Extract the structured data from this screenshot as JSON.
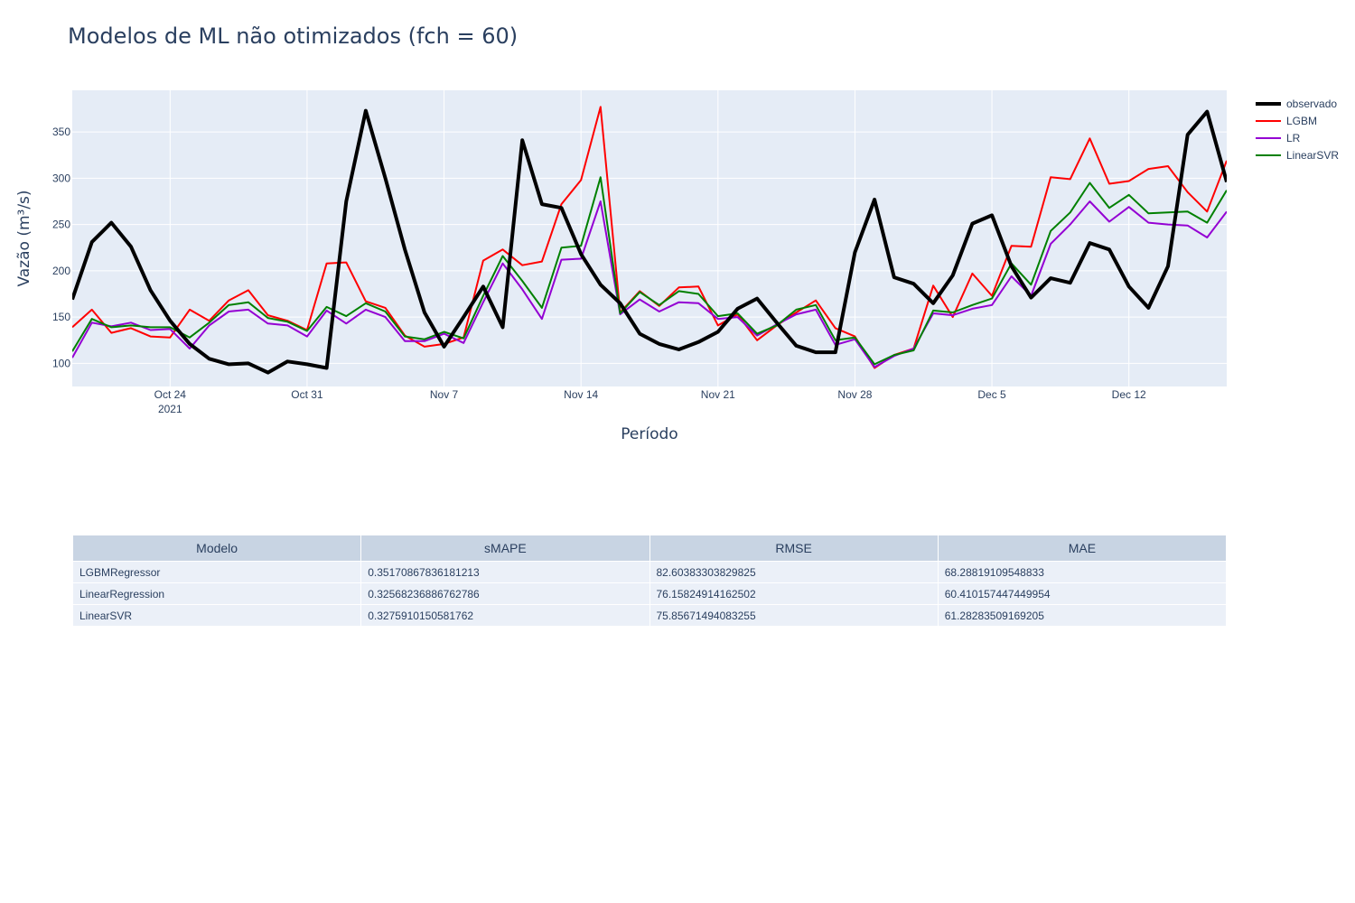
{
  "chart_data": {
    "type": "line",
    "title": "Modelos de ML não otimizados (fch = 60)",
    "xlabel": "Período",
    "ylabel": "Vazão (m³/s)",
    "x_start": "2021-10-19",
    "x_range": [
      "2021-10-19",
      "2021-12-17"
    ],
    "ylim": [
      75,
      395
    ],
    "y_ticks": [
      100,
      150,
      200,
      250,
      300,
      350
    ],
    "x_ticks": [
      {
        "date": "2021-10-24",
        "label": "Oct 24",
        "sublabel": "2021"
      },
      {
        "date": "2021-10-31",
        "label": "Oct 31",
        "sublabel": ""
      },
      {
        "date": "2021-11-07",
        "label": "Nov 7",
        "sublabel": ""
      },
      {
        "date": "2021-11-14",
        "label": "Nov 14",
        "sublabel": ""
      },
      {
        "date": "2021-11-21",
        "label": "Nov 21",
        "sublabel": ""
      },
      {
        "date": "2021-11-28",
        "label": "Nov 28",
        "sublabel": ""
      },
      {
        "date": "2021-12-05",
        "label": "Dec 5",
        "sublabel": ""
      },
      {
        "date": "2021-12-12",
        "label": "Dec 12",
        "sublabel": ""
      }
    ],
    "grid": true,
    "legend_position": "top-right",
    "series": [
      {
        "name": "observado",
        "color": "#000000",
        "width": 4,
        "values": [
          169,
          231,
          252,
          226,
          179,
          146,
          121,
          105,
          99,
          100,
          90,
          102,
          99,
          95,
          275,
          373,
          300,
          223,
          155,
          118,
          150,
          183,
          139,
          341,
          272,
          268,
          218,
          185,
          165,
          132,
          121,
          115,
          123,
          134,
          159,
          170,
          144,
          119,
          112,
          112,
          220,
          277,
          193,
          186,
          165,
          195,
          251,
          260,
          205,
          171,
          192,
          187,
          230,
          223,
          183,
          160,
          205,
          347,
          372,
          296
        ]
      },
      {
        "name": "LGBM",
        "color": "#ff0000",
        "width": 2,
        "values": [
          139,
          158,
          133,
          138,
          129,
          128,
          158,
          146,
          168,
          179,
          152,
          146,
          136,
          208,
          209,
          167,
          160,
          130,
          118,
          121,
          128,
          211,
          223,
          206,
          210,
          272,
          298,
          377,
          155,
          178,
          162,
          182,
          183,
          141,
          153,
          125,
          141,
          155,
          168,
          138,
          129,
          95,
          109,
          116,
          184,
          150,
          197,
          173,
          227,
          226,
          301,
          299,
          343,
          294,
          297,
          310,
          313,
          285,
          264,
          319
        ]
      },
      {
        "name": "LR",
        "color": "#9400d3",
        "width": 2,
        "values": [
          106,
          144,
          140,
          144,
          136,
          137,
          116,
          141,
          156,
          158,
          143,
          141,
          129,
          157,
          143,
          158,
          150,
          124,
          124,
          132,
          122,
          166,
          208,
          180,
          148,
          212,
          213,
          275,
          153,
          169,
          156,
          166,
          165,
          148,
          150,
          130,
          142,
          153,
          158,
          120,
          126,
          96,
          108,
          116,
          154,
          152,
          159,
          163,
          194,
          173,
          229,
          250,
          275,
          253,
          269,
          252,
          250,
          249,
          236,
          264
        ]
      },
      {
        "name": "LinearSVR",
        "color": "#008000",
        "width": 2,
        "values": [
          113,
          148,
          139,
          141,
          139,
          139,
          128,
          144,
          163,
          166,
          149,
          145,
          135,
          161,
          151,
          165,
          156,
          129,
          126,
          134,
          127,
          173,
          216,
          189,
          160,
          225,
          227,
          301,
          154,
          177,
          163,
          178,
          175,
          151,
          154,
          132,
          141,
          158,
          163,
          125,
          128,
          99,
          109,
          114,
          157,
          155,
          163,
          170,
          208,
          185,
          243,
          263,
          295,
          268,
          282,
          262,
          263,
          264,
          252,
          287
        ]
      }
    ]
  },
  "table": {
    "headers": [
      "Modelo",
      "sMAPE",
      "RMSE",
      "MAE"
    ],
    "rows": [
      [
        "LGBMRegressor",
        "0.35170867836181213",
        "82.60383303829825",
        "68.28819109548833"
      ],
      [
        "LinearRegression",
        "0.32568236886762786",
        "76.15824914162502",
        "60.410157447449954"
      ],
      [
        "LinearSVR",
        "0.3275910150581762",
        "75.85671494083255",
        "61.28283509169205"
      ]
    ]
  }
}
